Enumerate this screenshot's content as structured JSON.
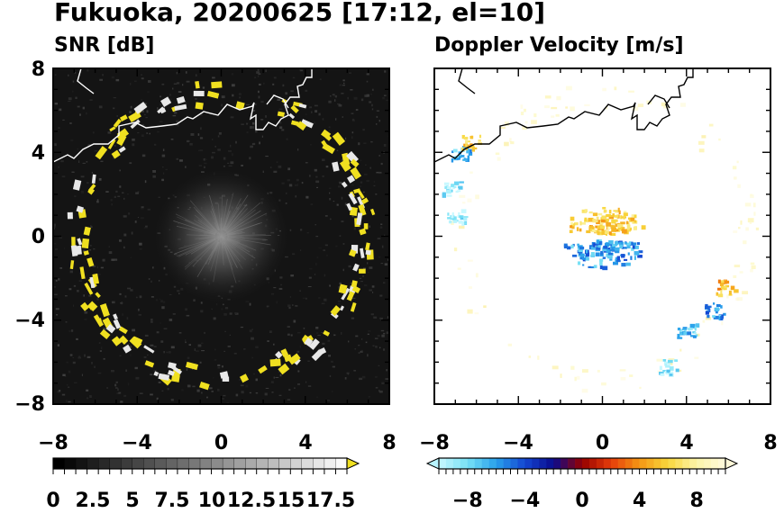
{
  "title": "Fukuoka, 20200625 [17:12, el=10]",
  "colors": {
    "echo_yellow": "#f0e020",
    "echo_white": "#e8e8e8",
    "coastline_left": "#ffffff",
    "coastline_right": "#000000",
    "snr_background": "#141414"
  },
  "chart_data": [
    {
      "type": "heatmap",
      "title": "SNR [dB]",
      "xlim": [
        -8,
        8
      ],
      "ylim": [
        -8,
        8
      ],
      "xticks": [
        "−8",
        "−4",
        "0",
        "4",
        "8"
      ],
      "yticks": [
        "8",
        "4",
        "0",
        "−4",
        "−8"
      ],
      "colorbar": {
        "min": 0,
        "max": 18.5,
        "extend": "max",
        "ticks": [
          "0",
          "2.5",
          "5",
          "7.5",
          "10",
          "12.5",
          "15",
          "17.5"
        ]
      },
      "ring_radius_km": 6.8,
      "near_field_radius_km": 2.5
    },
    {
      "type": "heatmap",
      "title": "Doppler Velocity [m/s]",
      "xlim": [
        -8,
        8
      ],
      "ylim": [
        -8,
        8
      ],
      "xticks": [
        "−8",
        "−4",
        "0",
        "4",
        "8"
      ],
      "yticks": [
        "",
        "",
        "",
        "",
        ""
      ],
      "colorbar": {
        "min": -10,
        "max": 10,
        "extend": "both",
        "ticks": [
          "−8",
          "−4",
          "0",
          "4",
          "8"
        ]
      },
      "echo_clusters": [
        {
          "x": -6.8,
          "y": 4.0,
          "v": -7
        },
        {
          "x": -6.3,
          "y": 4.5,
          "v": 6
        },
        {
          "x": -7.2,
          "y": 2.3,
          "v": -9
        },
        {
          "x": -7.0,
          "y": 1.0,
          "v": -9
        },
        {
          "x": 0.0,
          "y": 0.6,
          "v": 6
        },
        {
          "x": 0.0,
          "y": -0.5,
          "v": -6
        },
        {
          "x": 5.8,
          "y": -2.4,
          "v": 5
        },
        {
          "x": 5.3,
          "y": -3.5,
          "v": -6
        },
        {
          "x": 4.0,
          "y": -4.5,
          "v": -7
        },
        {
          "x": 3.1,
          "y": -6.2,
          "v": -9
        }
      ]
    }
  ]
}
